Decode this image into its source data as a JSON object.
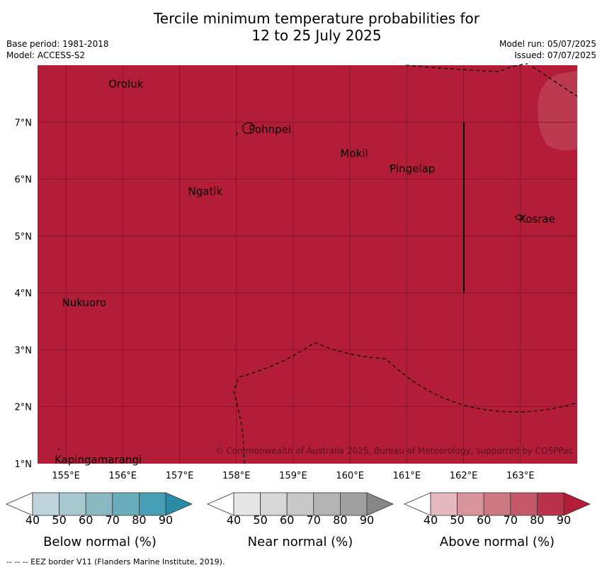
{
  "title_line1": "Tercile minimum temperature probabilities for",
  "title_line2": "12 to 25 July 2025",
  "base_period": "Base period: 1981-2018",
  "model": "Model: ACCESS-S2",
  "model_run": "Model run: 05/07/2025",
  "issued": "Issued: 07/07/2025",
  "copyright": "© Commonwealth of Australia 2025, Bureau of Meteorology, supported by COSPPac",
  "footer": "--  --  -- EEZ border V11 (Flanders Marine Institute, 2019).",
  "colors": {
    "map_fill": "#b31d38",
    "map_patch": "#bc3a50",
    "grid": "#7a1122"
  },
  "axes": {
    "lon_labels": [
      "155°E",
      "156°E",
      "157°E",
      "158°E",
      "159°E",
      "160°E",
      "161°E",
      "162°E",
      "163°E"
    ],
    "lat_labels": [
      "7°N",
      "6°N",
      "5°N",
      "4°N",
      "3°N",
      "2°N",
      "1°N"
    ]
  },
  "places": [
    {
      "name": "Oroluk",
      "lon": 155.75,
      "lat": 7.67
    },
    {
      "name": "Pohnpei",
      "lon": 158.22,
      "lat": 6.87
    },
    {
      "name": "Mokil",
      "lon": 159.83,
      "lat": 6.45
    },
    {
      "name": "Pingelap",
      "lon": 160.7,
      "lat": 6.18
    },
    {
      "name": "Ngatik",
      "lon": 157.15,
      "lat": 5.78
    },
    {
      "name": "Kosrae",
      "lon": 162.98,
      "lat": 5.3
    },
    {
      "name": "Nukuoro",
      "lon": 154.93,
      "lat": 3.83
    },
    {
      "name": "Kapingamarangi",
      "lon": 154.8,
      "lat": 1.07
    }
  ],
  "legends": [
    {
      "label": "Below normal (%)",
      "colors": [
        "#ffffff",
        "#bfd5db",
        "#a6c8ce",
        "#8bb9c2",
        "#6aaebd",
        "#469fb4",
        "#2a8ba6"
      ],
      "ticks": [
        "40",
        "50",
        "60",
        "70",
        "80",
        "90"
      ]
    },
    {
      "label": "Near normal (%)",
      "colors": [
        "#ffffff",
        "#e6e6e6",
        "#d7d7d7",
        "#c8c8c8",
        "#b4b4b4",
        "#a0a0a0",
        "#878787"
      ],
      "ticks": [
        "40",
        "50",
        "60",
        "70",
        "80",
        "90"
      ]
    },
    {
      "label": "Above normal (%)",
      "colors": [
        "#ffffff",
        "#e3b8bf",
        "#d9959e",
        "#cd7882",
        "#c45a69",
        "#b8324a",
        "#b31d38"
      ],
      "ticks": [
        "40",
        "50",
        "60",
        "70",
        "80",
        "90"
      ]
    }
  ]
}
